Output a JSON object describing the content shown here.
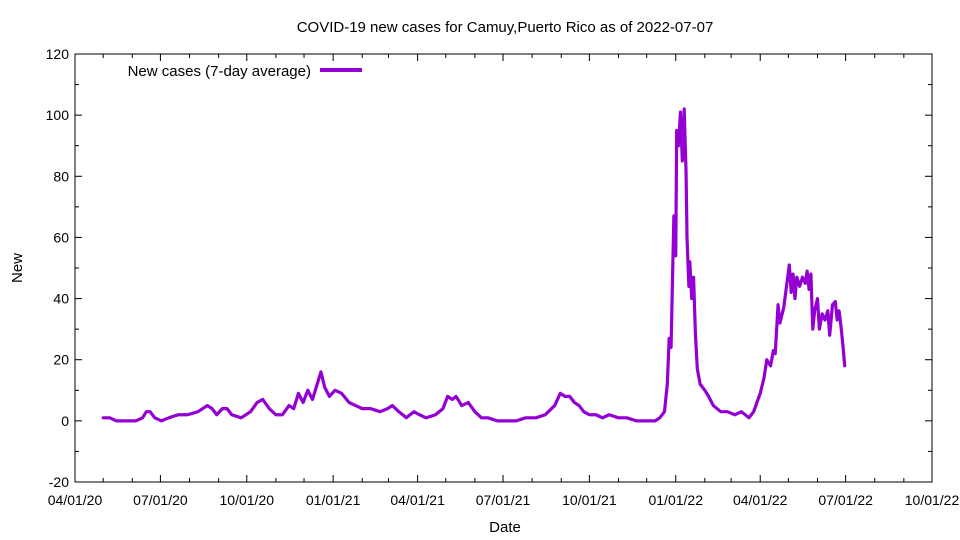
{
  "chart_data": {
    "type": "line",
    "title": "COVID-19 new cases for Camuy,Puerto Rico as of 2022-07-07",
    "xlabel": "Date",
    "ylabel": "New",
    "xlim": [
      "2020-04-01",
      "2022-10-01"
    ],
    "ylim": [
      -20,
      120
    ],
    "y_ticks": [
      -20,
      0,
      20,
      40,
      60,
      80,
      100,
      120
    ],
    "x_ticks": [
      {
        "date": "2020-04-01",
        "label": "04/01/20"
      },
      {
        "date": "2020-07-01",
        "label": "07/01/20"
      },
      {
        "date": "2020-10-01",
        "label": "10/01/20"
      },
      {
        "date": "2021-01-01",
        "label": "01/01/21"
      },
      {
        "date": "2021-04-01",
        "label": "04/01/21"
      },
      {
        "date": "2021-07-01",
        "label": "07/01/21"
      },
      {
        "date": "2021-10-01",
        "label": "10/01/21"
      },
      {
        "date": "2022-01-01",
        "label": "01/01/22"
      },
      {
        "date": "2022-04-01",
        "label": "04/01/22"
      },
      {
        "date": "2022-07-01",
        "label": "07/01/22"
      },
      {
        "date": "2022-10-01",
        "label": "10/01/22"
      }
    ],
    "grid": false,
    "legend_position": "top-left",
    "series": [
      {
        "name": "New cases (7-day average)",
        "color": "#9400d3",
        "points": [
          [
            "2020-05-01",
            1
          ],
          [
            "2020-05-08",
            1
          ],
          [
            "2020-05-15",
            0
          ],
          [
            "2020-05-25",
            0
          ],
          [
            "2020-06-05",
            0
          ],
          [
            "2020-06-12",
            1
          ],
          [
            "2020-06-16",
            3
          ],
          [
            "2020-06-20",
            3
          ],
          [
            "2020-06-25",
            1
          ],
          [
            "2020-07-02",
            0
          ],
          [
            "2020-07-10",
            1
          ],
          [
            "2020-07-20",
            2
          ],
          [
            "2020-07-30",
            2
          ],
          [
            "2020-08-10",
            3
          ],
          [
            "2020-08-20",
            5
          ],
          [
            "2020-08-25",
            4
          ],
          [
            "2020-08-30",
            2
          ],
          [
            "2020-09-05",
            4
          ],
          [
            "2020-09-10",
            4
          ],
          [
            "2020-09-15",
            2
          ],
          [
            "2020-09-25",
            1
          ],
          [
            "2020-10-05",
            3
          ],
          [
            "2020-10-12",
            6
          ],
          [
            "2020-10-18",
            7
          ],
          [
            "2020-10-25",
            4
          ],
          [
            "2020-11-01",
            2
          ],
          [
            "2020-11-08",
            2
          ],
          [
            "2020-11-15",
            5
          ],
          [
            "2020-11-20",
            4
          ],
          [
            "2020-11-25",
            9
          ],
          [
            "2020-11-30",
            6
          ],
          [
            "2020-12-05",
            10
          ],
          [
            "2020-12-10",
            7
          ],
          [
            "2020-12-15",
            12
          ],
          [
            "2020-12-19",
            16
          ],
          [
            "2020-12-23",
            11
          ],
          [
            "2020-12-28",
            8
          ],
          [
            "2021-01-03",
            10
          ],
          [
            "2021-01-10",
            9
          ],
          [
            "2021-01-18",
            6
          ],
          [
            "2021-01-25",
            5
          ],
          [
            "2021-02-01",
            4
          ],
          [
            "2021-02-10",
            4
          ],
          [
            "2021-02-20",
            3
          ],
          [
            "2021-02-28",
            4
          ],
          [
            "2021-03-05",
            5
          ],
          [
            "2021-03-12",
            3
          ],
          [
            "2021-03-20",
            1
          ],
          [
            "2021-03-28",
            3
          ],
          [
            "2021-04-03",
            2
          ],
          [
            "2021-04-10",
            1
          ],
          [
            "2021-04-20",
            2
          ],
          [
            "2021-04-28",
            4
          ],
          [
            "2021-05-03",
            8
          ],
          [
            "2021-05-08",
            7
          ],
          [
            "2021-05-12",
            8
          ],
          [
            "2021-05-18",
            5
          ],
          [
            "2021-05-25",
            6
          ],
          [
            "2021-06-01",
            3
          ],
          [
            "2021-06-08",
            1
          ],
          [
            "2021-06-15",
            1
          ],
          [
            "2021-06-25",
            0
          ],
          [
            "2021-07-05",
            0
          ],
          [
            "2021-07-15",
            0
          ],
          [
            "2021-07-25",
            1
          ],
          [
            "2021-08-05",
            1
          ],
          [
            "2021-08-15",
            2
          ],
          [
            "2021-08-25",
            5
          ],
          [
            "2021-08-31",
            9
          ],
          [
            "2021-09-05",
            8
          ],
          [
            "2021-09-10",
            8
          ],
          [
            "2021-09-15",
            6
          ],
          [
            "2021-09-20",
            5
          ],
          [
            "2021-09-25",
            3
          ],
          [
            "2021-10-01",
            2
          ],
          [
            "2021-10-08",
            2
          ],
          [
            "2021-10-15",
            1
          ],
          [
            "2021-10-22",
            2
          ],
          [
            "2021-11-01",
            1
          ],
          [
            "2021-11-10",
            1
          ],
          [
            "2021-11-20",
            0
          ],
          [
            "2021-11-30",
            0
          ],
          [
            "2021-12-10",
            0
          ],
          [
            "2021-12-15",
            1
          ],
          [
            "2021-12-20",
            3
          ],
          [
            "2021-12-23",
            12
          ],
          [
            "2021-12-25",
            27
          ],
          [
            "2021-12-27",
            24
          ],
          [
            "2021-12-30",
            67
          ],
          [
            "2022-01-01",
            54
          ],
          [
            "2022-01-02",
            95
          ],
          [
            "2022-01-04",
            90
          ],
          [
            "2022-01-06",
            101
          ],
          [
            "2022-01-08",
            85
          ],
          [
            "2022-01-10",
            102
          ],
          [
            "2022-01-12",
            81
          ],
          [
            "2022-01-13",
            60
          ],
          [
            "2022-01-15",
            44
          ],
          [
            "2022-01-16",
            52
          ],
          [
            "2022-01-18",
            40
          ],
          [
            "2022-01-20",
            47
          ],
          [
            "2022-01-22",
            28
          ],
          [
            "2022-01-24",
            17
          ],
          [
            "2022-01-27",
            12
          ],
          [
            "2022-02-01",
            10
          ],
          [
            "2022-02-05",
            8
          ],
          [
            "2022-02-10",
            5
          ],
          [
            "2022-02-18",
            3
          ],
          [
            "2022-02-25",
            3
          ],
          [
            "2022-03-05",
            2
          ],
          [
            "2022-03-12",
            3
          ],
          [
            "2022-03-20",
            1
          ],
          [
            "2022-03-25",
            3
          ],
          [
            "2022-04-01",
            9
          ],
          [
            "2022-04-05",
            14
          ],
          [
            "2022-04-08",
            20
          ],
          [
            "2022-04-12",
            18
          ],
          [
            "2022-04-15",
            23
          ],
          [
            "2022-04-17",
            22
          ],
          [
            "2022-04-20",
            38
          ],
          [
            "2022-04-22",
            32
          ],
          [
            "2022-04-26",
            37
          ],
          [
            "2022-04-29",
            44
          ],
          [
            "2022-05-02",
            51
          ],
          [
            "2022-05-04",
            42
          ],
          [
            "2022-05-06",
            48
          ],
          [
            "2022-05-08",
            40
          ],
          [
            "2022-05-10",
            47
          ],
          [
            "2022-05-13",
            44
          ],
          [
            "2022-05-16",
            47
          ],
          [
            "2022-05-19",
            45
          ],
          [
            "2022-05-21",
            49
          ],
          [
            "2022-05-23",
            43
          ],
          [
            "2022-05-25",
            48
          ],
          [
            "2022-05-27",
            30
          ],
          [
            "2022-05-29",
            36
          ],
          [
            "2022-06-01",
            40
          ],
          [
            "2022-06-03",
            30
          ],
          [
            "2022-06-06",
            35
          ],
          [
            "2022-06-09",
            33
          ],
          [
            "2022-06-12",
            36
          ],
          [
            "2022-06-14",
            28
          ],
          [
            "2022-06-17",
            38
          ],
          [
            "2022-06-20",
            39
          ],
          [
            "2022-06-22",
            33
          ],
          [
            "2022-06-24",
            36
          ],
          [
            "2022-06-26",
            31
          ],
          [
            "2022-06-28",
            25
          ],
          [
            "2022-06-30",
            18
          ]
        ]
      }
    ]
  }
}
